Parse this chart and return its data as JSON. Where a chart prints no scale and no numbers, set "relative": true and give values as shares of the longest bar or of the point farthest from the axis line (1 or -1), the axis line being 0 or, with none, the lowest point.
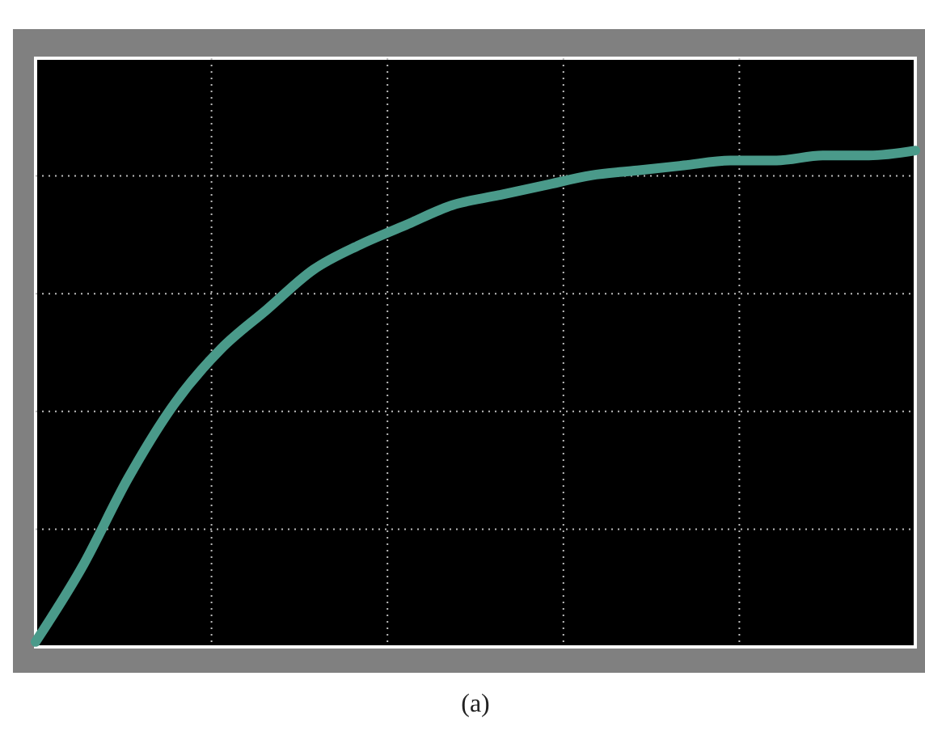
{
  "chart_data": {
    "type": "line",
    "relative": true,
    "grid": true,
    "categories": [
      null,
      null,
      null,
      null,
      null,
      null,
      null,
      null,
      null,
      null,
      null,
      null,
      null,
      null,
      null,
      null,
      null,
      null,
      null,
      null
    ],
    "series": [
      {
        "color": "#4a9a8a",
        "values": [
          0.01,
          0.16,
          0.34,
          0.49,
          0.6,
          0.68,
          0.76,
          0.81,
          0.85,
          0.89,
          0.91,
          0.93,
          0.95,
          0.96,
          0.97,
          0.98,
          0.98,
          0.99,
          0.99,
          1
        ]
      }
    ],
    "annotations": [
      "(a)"
    ]
  }
}
